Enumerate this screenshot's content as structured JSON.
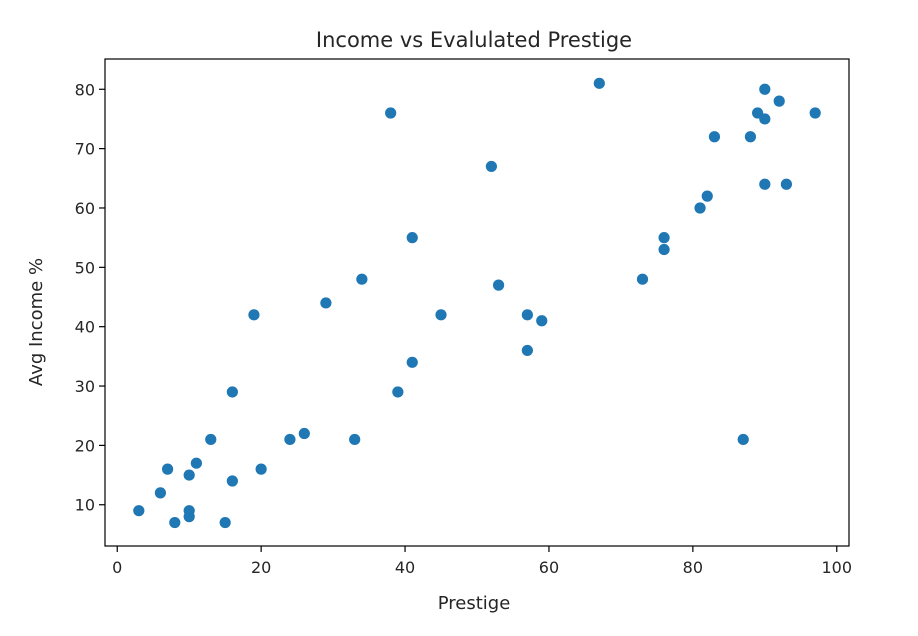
{
  "chart_data": {
    "type": "scatter",
    "title": "Income vs Evalulated Prestige",
    "xlabel": "Prestige",
    "ylabel": "Avg Income %",
    "xlim": [
      -1.7,
      101.7
    ],
    "ylim": [
      3.05,
      85.1
    ],
    "xticks": [
      0,
      20,
      40,
      60,
      80,
      100
    ],
    "yticks": [
      10,
      20,
      30,
      40,
      50,
      60,
      70,
      80
    ],
    "grid": false,
    "marker_color": "#1f77b4",
    "points": [
      {
        "x": 3,
        "y": 9
      },
      {
        "x": 6,
        "y": 12
      },
      {
        "x": 7,
        "y": 16
      },
      {
        "x": 8,
        "y": 7
      },
      {
        "x": 10,
        "y": 8
      },
      {
        "x": 10,
        "y": 9
      },
      {
        "x": 10,
        "y": 15
      },
      {
        "x": 11,
        "y": 17
      },
      {
        "x": 13,
        "y": 21
      },
      {
        "x": 15,
        "y": 7
      },
      {
        "x": 16,
        "y": 14
      },
      {
        "x": 16,
        "y": 29
      },
      {
        "x": 19,
        "y": 42
      },
      {
        "x": 20,
        "y": 16
      },
      {
        "x": 24,
        "y": 21
      },
      {
        "x": 26,
        "y": 22
      },
      {
        "x": 29,
        "y": 44
      },
      {
        "x": 33,
        "y": 21
      },
      {
        "x": 34,
        "y": 48
      },
      {
        "x": 38,
        "y": 76
      },
      {
        "x": 39,
        "y": 29
      },
      {
        "x": 41,
        "y": 34
      },
      {
        "x": 41,
        "y": 55
      },
      {
        "x": 45,
        "y": 42
      },
      {
        "x": 52,
        "y": 67
      },
      {
        "x": 53,
        "y": 47
      },
      {
        "x": 57,
        "y": 36
      },
      {
        "x": 57,
        "y": 42
      },
      {
        "x": 59,
        "y": 41
      },
      {
        "x": 67,
        "y": 81
      },
      {
        "x": 73,
        "y": 48
      },
      {
        "x": 76,
        "y": 53
      },
      {
        "x": 76,
        "y": 55
      },
      {
        "x": 81,
        "y": 60
      },
      {
        "x": 82,
        "y": 62
      },
      {
        "x": 83,
        "y": 72
      },
      {
        "x": 87,
        "y": 21
      },
      {
        "x": 88,
        "y": 72
      },
      {
        "x": 89,
        "y": 76
      },
      {
        "x": 90,
        "y": 64
      },
      {
        "x": 90,
        "y": 75
      },
      {
        "x": 90,
        "y": 80
      },
      {
        "x": 92,
        "y": 78
      },
      {
        "x": 93,
        "y": 64
      },
      {
        "x": 97,
        "y": 76
      }
    ]
  }
}
